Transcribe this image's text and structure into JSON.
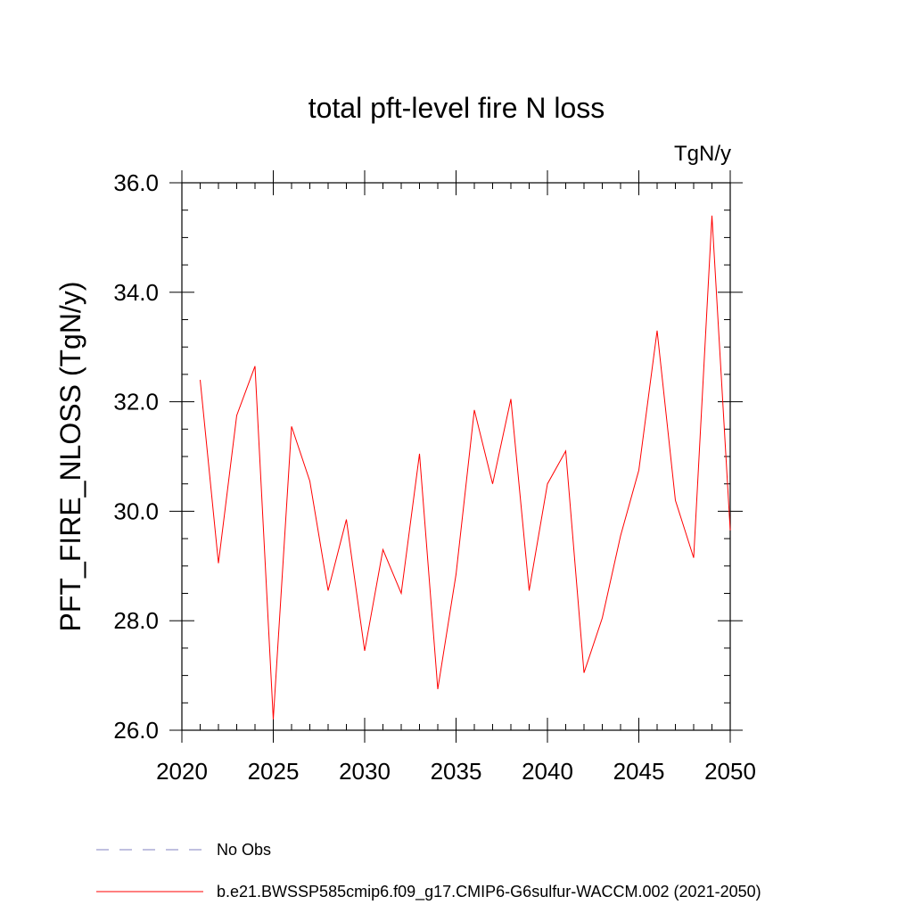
{
  "chart_data": {
    "type": "line",
    "title": "total pft-level fire N loss",
    "units_label": "TgN/y",
    "ylabel": "PFT_FIRE_NLOSS  (TgN/y)",
    "xlabel": "",
    "xlim": [
      2020,
      2050
    ],
    "ylim": [
      26.0,
      36.0
    ],
    "x_ticks": [
      2020,
      2025,
      2030,
      2035,
      2040,
      2045,
      2050
    ],
    "x_tick_labels": [
      "2020",
      "2025",
      "2030",
      "2035",
      "2040",
      "2045",
      "2050"
    ],
    "y_ticks": [
      26.0,
      28.0,
      30.0,
      32.0,
      34.0,
      36.0
    ],
    "y_tick_labels": [
      "26.0",
      "28.0",
      "30.0",
      "32.0",
      "34.0",
      "36.0"
    ],
    "grid": false,
    "legend_position": "bottom",
    "series": [
      {
        "name": "No Obs",
        "color": "#8080c0",
        "dash": "dashed",
        "x": [],
        "values": []
      },
      {
        "name": "b.e21.BWSSP585cmip6.f09_g17.CMIP6-G6sulfur-WACCM.002 (2021-2050)",
        "color": "#ff0000",
        "dash": "solid",
        "x": [
          2021,
          2022,
          2023,
          2024,
          2025,
          2026,
          2027,
          2028,
          2029,
          2030,
          2031,
          2032,
          2033,
          2034,
          2035,
          2036,
          2037,
          2038,
          2039,
          2040,
          2041,
          2042,
          2043,
          2044,
          2045,
          2046,
          2047,
          2048,
          2049,
          2050
        ],
        "values": [
          32.4,
          29.05,
          31.75,
          32.65,
          26.2,
          31.55,
          30.55,
          28.55,
          29.85,
          27.45,
          29.3,
          28.5,
          31.05,
          26.75,
          28.85,
          31.85,
          30.5,
          32.05,
          28.55,
          30.5,
          31.1,
          27.05,
          28.05,
          29.55,
          30.75,
          33.3,
          30.2,
          29.15,
          35.4,
          29.65
        ]
      }
    ]
  }
}
